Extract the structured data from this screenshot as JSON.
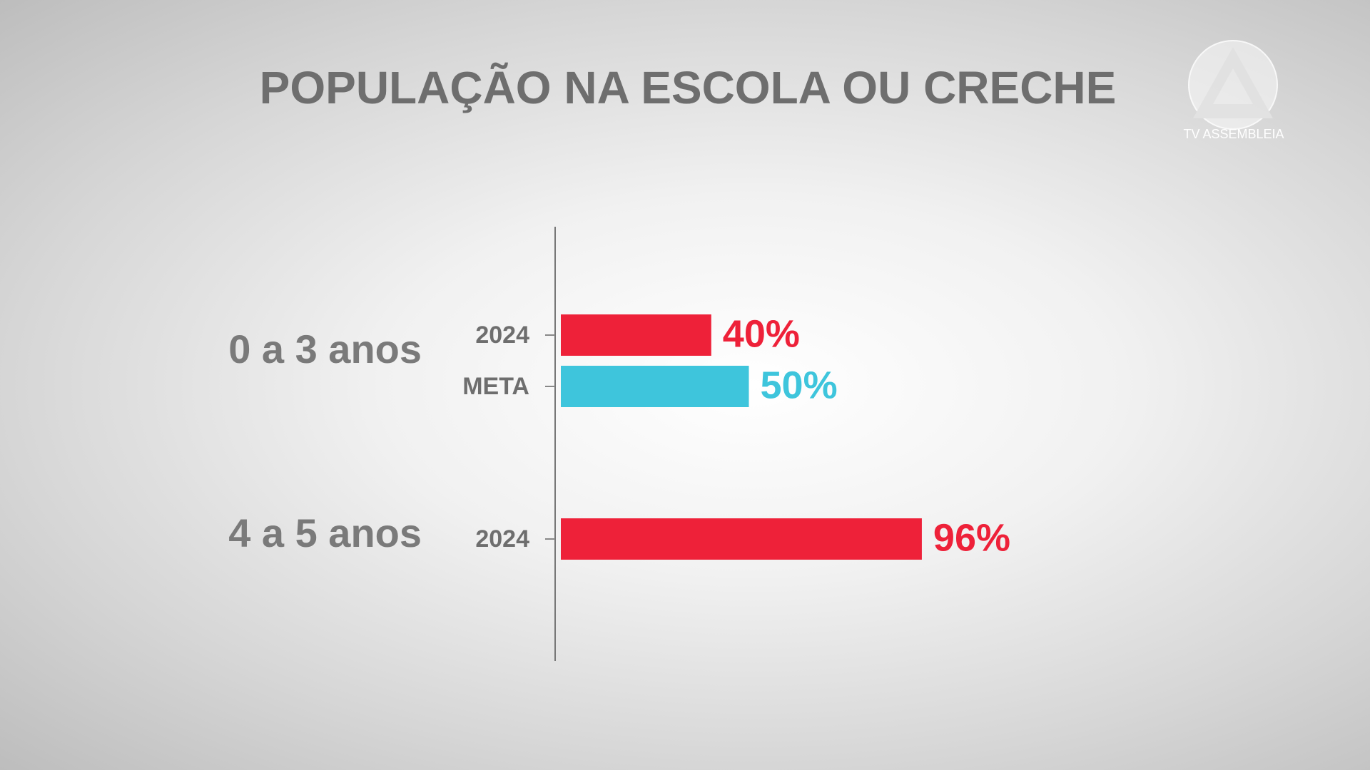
{
  "chart_data": {
    "type": "bar",
    "orientation": "horizontal",
    "title": "POPULAÇÃO NA ESCOLA OU CRECHE",
    "watermark": "TV ASSEMBLEIA",
    "xlim": [
      0,
      100
    ],
    "groups": [
      {
        "name": "0 a 3 anos",
        "labels": [
          "2024",
          "META"
        ],
        "values": [
          40,
          50
        ],
        "value_labels": [
          "40%",
          "50%"
        ],
        "colors": [
          "#ee2139",
          "#3ec5dc"
        ]
      },
      {
        "name": "4 a 5 anos",
        "labels": [
          "2024"
        ],
        "values": [
          96
        ],
        "value_labels": [
          "96%"
        ],
        "colors": [
          "#ee2139"
        ]
      }
    ]
  }
}
